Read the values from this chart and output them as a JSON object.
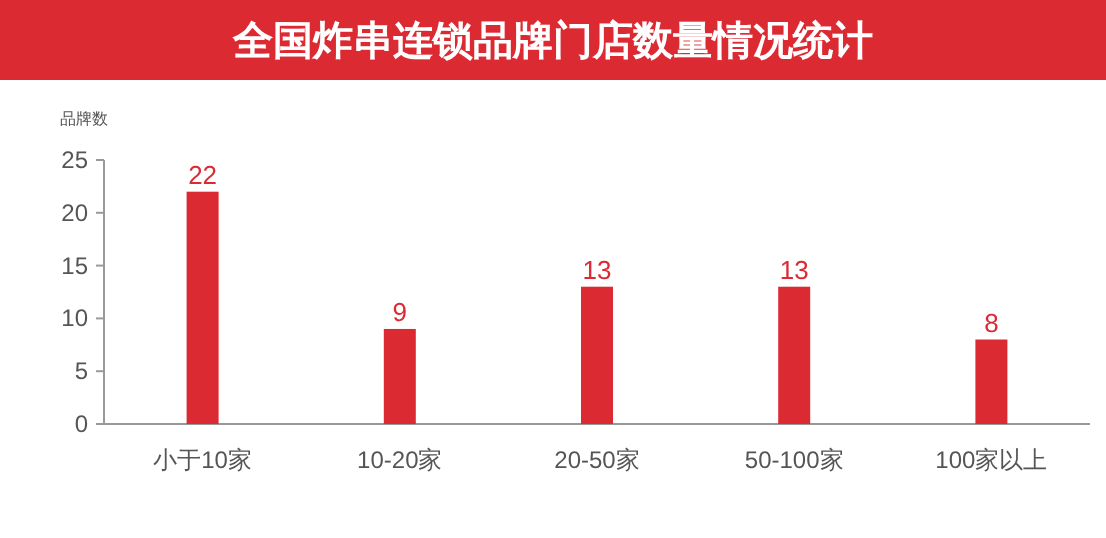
{
  "chart_data": {
    "type": "bar",
    "title": "全国炸串连锁品牌门店数量情况统计",
    "ylabel": "品牌数",
    "categories": [
      "小于10家",
      "10-20家",
      "20-50家",
      "50-100家",
      "100家以上"
    ],
    "values": [
      22,
      9,
      13,
      13,
      8
    ],
    "color": "#dc2a33",
    "ylim": [
      0,
      25
    ],
    "yticks": [
      0,
      5,
      10,
      15,
      20,
      25
    ],
    "data_labels": true
  }
}
